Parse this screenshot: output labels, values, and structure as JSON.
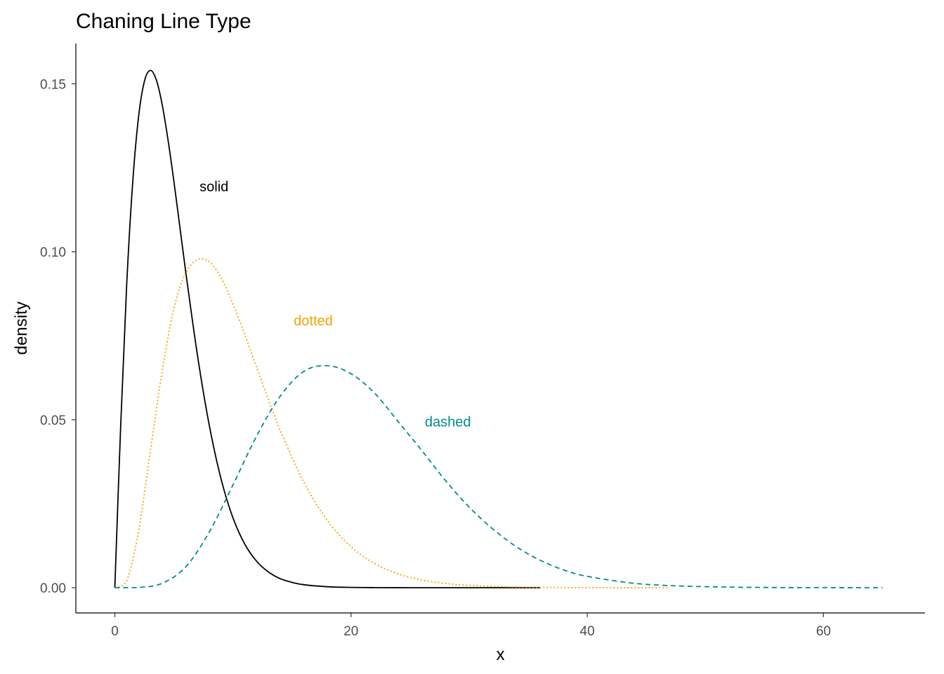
{
  "chart_data": {
    "type": "line",
    "title": "Chaning Line Type",
    "xlabel": "x",
    "ylabel": "density",
    "xlim": [
      -3.3,
      68.6
    ],
    "ylim": [
      -0.0075,
      0.162
    ],
    "x_ticks": [
      0,
      20,
      40,
      60
    ],
    "x_tick_labels": [
      "0",
      "20",
      "40",
      "60"
    ],
    "y_ticks": [
      0,
      0.05,
      0.1,
      0.15
    ],
    "y_tick_labels": [
      "0.00",
      "0.05",
      "0.10",
      "0.15"
    ],
    "grid": false,
    "legend": "none",
    "series": [
      {
        "line_style": "solid",
        "color": "#000000",
        "x": [
          0,
          0.5,
          1,
          1.5,
          2,
          2.5,
          3,
          3.5,
          4,
          4.5,
          5,
          5.5,
          6,
          7,
          8,
          9,
          10,
          11,
          12,
          13,
          14,
          15,
          16,
          18,
          20,
          22,
          24,
          26,
          28,
          30,
          32,
          34,
          36
        ],
        "y": [
          0,
          0.0486,
          0.0899,
          0.12,
          0.1399,
          0.1507,
          0.154,
          0.1513,
          0.144,
          0.1334,
          0.121,
          0.1076,
          0.0941,
          0.0691,
          0.0483,
          0.0323,
          0.0208,
          0.013,
          0.0079,
          0.0047,
          0.0027,
          0.0016,
          0.0009,
          0.0003,
          0.0001,
          3e-05,
          1e-05,
          0,
          0,
          0,
          0,
          0,
          0
        ]
      },
      {
        "line_style": "dotted",
        "color": "#f5a300",
        "x": [
          0,
          1,
          2,
          3,
          4,
          5,
          6,
          7,
          8,
          9,
          10,
          11,
          12,
          13,
          14,
          16,
          18,
          20,
          22,
          24,
          26,
          28,
          30,
          34,
          38,
          42,
          47
        ],
        "y": [
          0,
          0.002,
          0.0166,
          0.0405,
          0.0642,
          0.0831,
          0.0937,
          0.0976,
          0.0971,
          0.0922,
          0.0845,
          0.0754,
          0.0657,
          0.056,
          0.0469,
          0.0314,
          0.02,
          0.0122,
          0.0072,
          0.0041,
          0.0023,
          0.0013,
          0.0007,
          0.0002,
          6e-05,
          2e-05,
          0
        ]
      },
      {
        "line_style": "dashed",
        "color": "#008b8b",
        "x": [
          0,
          2,
          4,
          6,
          8,
          10,
          12,
          14,
          16,
          18,
          20,
          22,
          24,
          26,
          28,
          30,
          32,
          34,
          36,
          38,
          40,
          44,
          48,
          52,
          56,
          60,
          65
        ],
        "y": [
          0,
          7e-05,
          0.0013,
          0.0062,
          0.0166,
          0.0306,
          0.0451,
          0.057,
          0.0644,
          0.0661,
          0.0637,
          0.0579,
          0.0494,
          0.0408,
          0.0319,
          0.024,
          0.0175,
          0.0122,
          0.0082,
          0.0053,
          0.0034,
          0.0013,
          0.0005,
          0.0002,
          6e-05,
          2e-05,
          0
        ]
      }
    ],
    "annotations": [
      {
        "text": "solid",
        "x": 8.4,
        "y": 0.1195,
        "color": "#000000"
      },
      {
        "text": "dotted",
        "x": 16.8,
        "y": 0.0795,
        "color": "#f5a300"
      },
      {
        "text": "dashed",
        "x": 28.2,
        "y": 0.0495,
        "color": "#008b8b"
      }
    ]
  }
}
